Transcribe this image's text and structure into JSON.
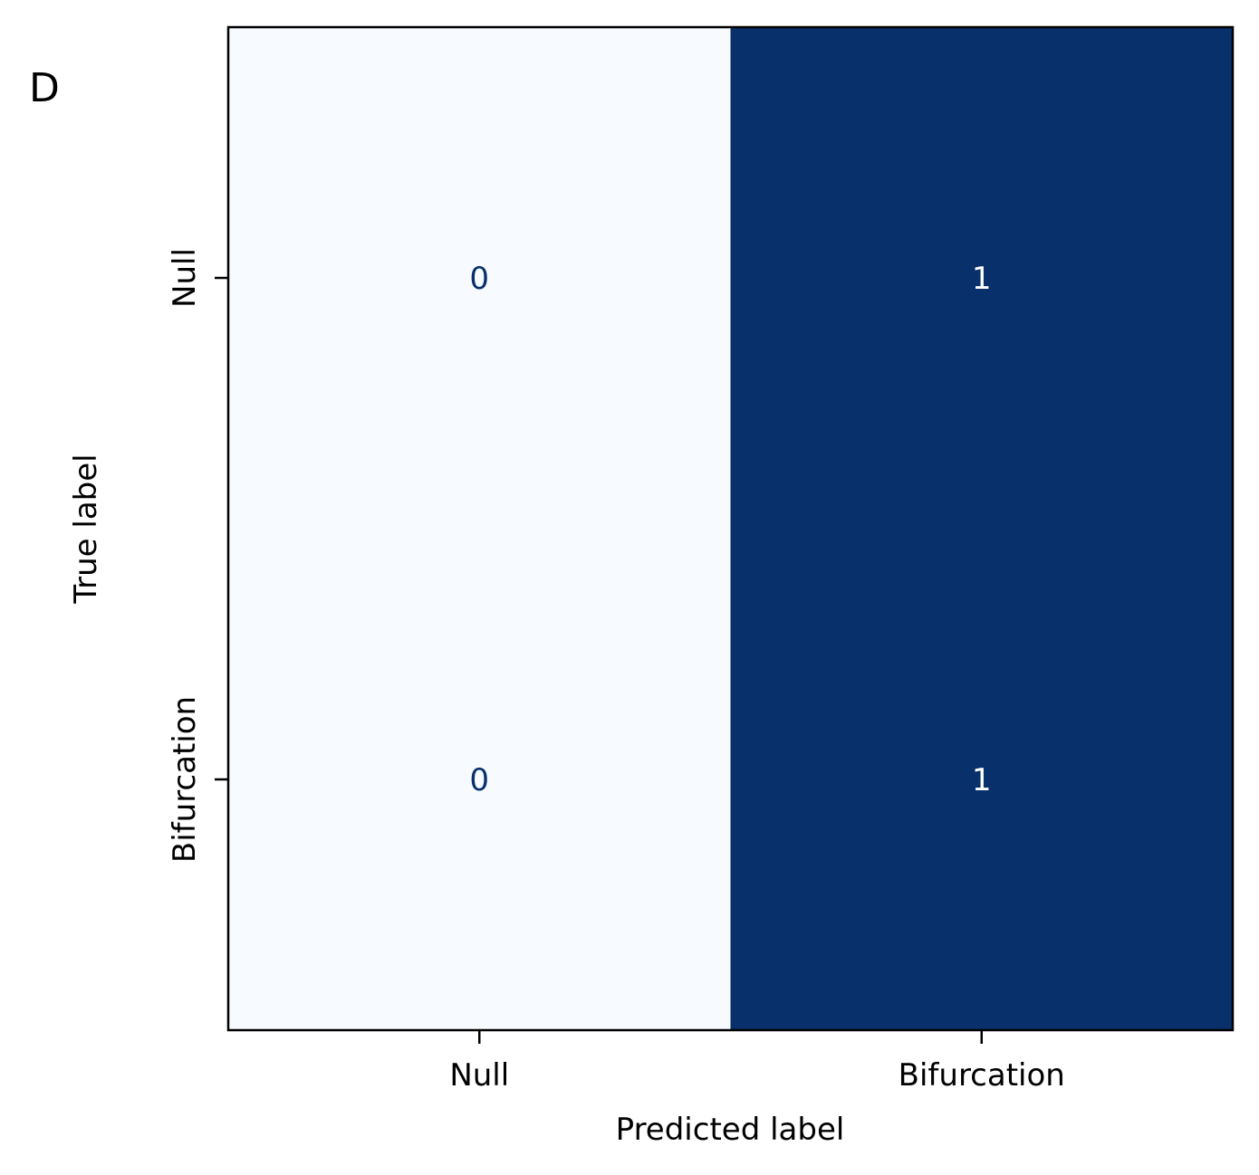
{
  "panel_label": "D",
  "chart_data": {
    "type": "heatmap",
    "xlabel": "Predicted label",
    "ylabel": "True label",
    "x_categories": [
      "Null",
      "Bifurcation"
    ],
    "y_categories": [
      "Null",
      "Bifurcation"
    ],
    "values": [
      [
        0,
        1
      ],
      [
        0,
        1
      ]
    ],
    "value_range": [
      0,
      1
    ],
    "colormap": "Blues",
    "colors": {
      "low": "#f7fbff",
      "high": "#08306b",
      "text_on_low": "#08306b",
      "text_on_high": "#ffffff",
      "frame": "#000000"
    },
    "colorbar": false,
    "grid": false
  }
}
